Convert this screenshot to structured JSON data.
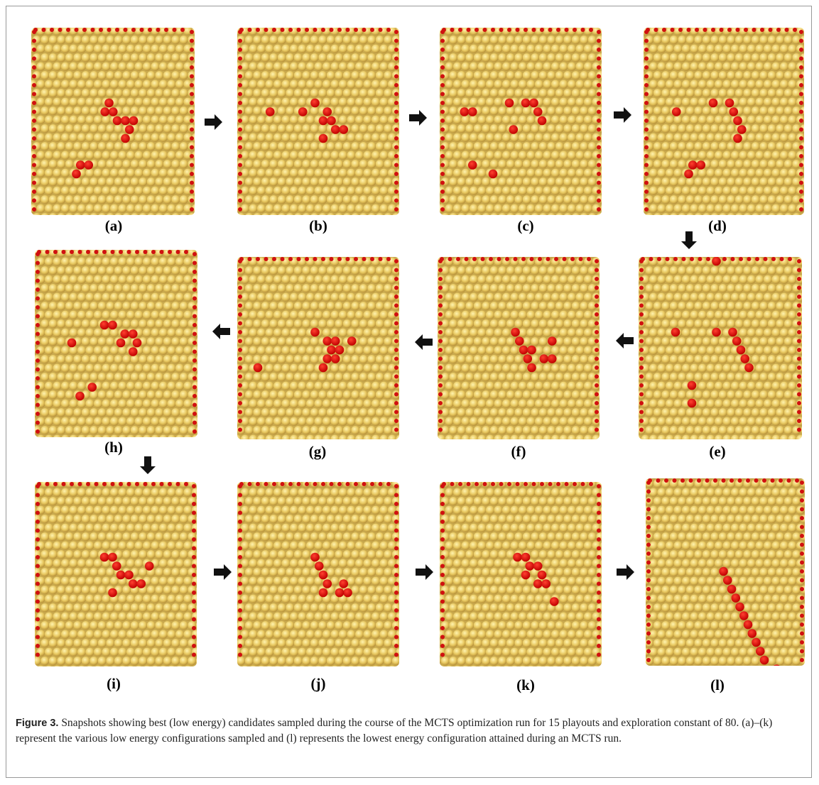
{
  "panels": [
    {
      "label": "(a)"
    },
    {
      "label": "(b)"
    },
    {
      "label": "(c)"
    },
    {
      "label": "(d)"
    },
    {
      "label": "(e)"
    },
    {
      "label": "(f)"
    },
    {
      "label": "(g)"
    },
    {
      "label": "(h)"
    },
    {
      "label": "(i)"
    },
    {
      "label": "(j)"
    },
    {
      "label": "(k)"
    },
    {
      "label": "(l)"
    }
  ],
  "caption": {
    "label": "Figure 3.",
    "text": "Snapshots showing best (low energy) candidates sampled during the course of the MCTS optimization run for 15 playouts and exploration constant of 80. (a)–(k) represent the various low energy configurations sampled and (l) represents the lowest energy configuration attained during an MCTS run."
  }
}
